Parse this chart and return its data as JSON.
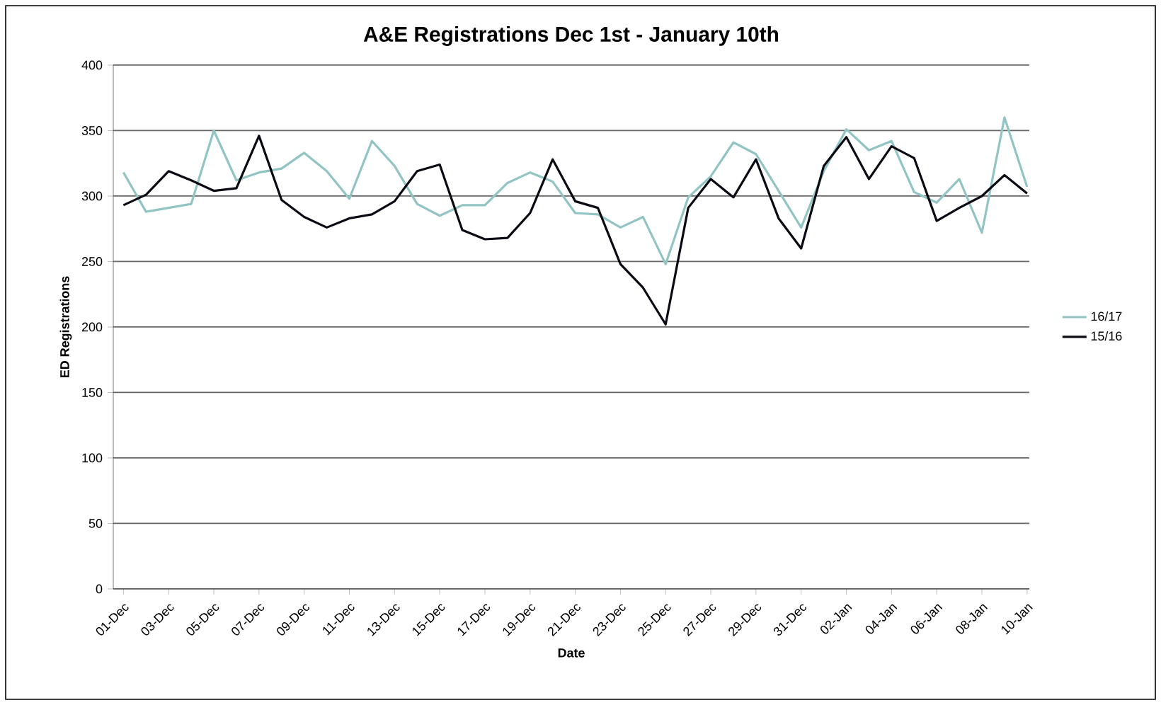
{
  "chart_data": {
    "type": "line",
    "title": "A&E Registrations Dec 1st - January 10th",
    "xlabel": "Date",
    "ylabel": "ED Registrations",
    "categories": [
      "01-Dec",
      null,
      "03-Dec",
      null,
      "05-Dec",
      null,
      "07-Dec",
      null,
      "09-Dec",
      null,
      "11-Dec",
      null,
      "13-Dec",
      null,
      "15-Dec",
      null,
      "17-Dec",
      null,
      "19-Dec",
      null,
      "21-Dec",
      null,
      "23-Dec",
      null,
      "25-Dec",
      null,
      "27-Dec",
      null,
      "29-Dec",
      null,
      "31-Dec",
      null,
      "02-Jan",
      null,
      "04-Jan",
      null,
      "06-Jan",
      null,
      "08-Jan",
      null,
      "10-Jan"
    ],
    "series": [
      {
        "name": "16/17",
        "color": "#93c4c4",
        "values": [
          318,
          288,
          291,
          294,
          350,
          312,
          318,
          321,
          333,
          319,
          298,
          342,
          323,
          294,
          285,
          293,
          293,
          310,
          318,
          311,
          287,
          286,
          276,
          284,
          248,
          299,
          315,
          341,
          332,
          304,
          276,
          319,
          351,
          335,
          342,
          303,
          295,
          313,
          272,
          360,
          307
        ]
      },
      {
        "name": "15/16",
        "color": "#0a0a14",
        "values": [
          293,
          301,
          319,
          312,
          304,
          306,
          346,
          297,
          284,
          276,
          283,
          286,
          296,
          319,
          324,
          274,
          267,
          268,
          287,
          328,
          296,
          291,
          248,
          230,
          202,
          291,
          313,
          299,
          328,
          283,
          260,
          323,
          345,
          313,
          338,
          329,
          281,
          291,
          300,
          316,
          302
        ]
      }
    ],
    "ylim": [
      0,
      400
    ],
    "yticks": [
      0,
      50,
      100,
      150,
      200,
      250,
      300,
      350,
      400
    ],
    "grid": "y",
    "legend": "right",
    "marker": "none",
    "line_style": "solid"
  }
}
